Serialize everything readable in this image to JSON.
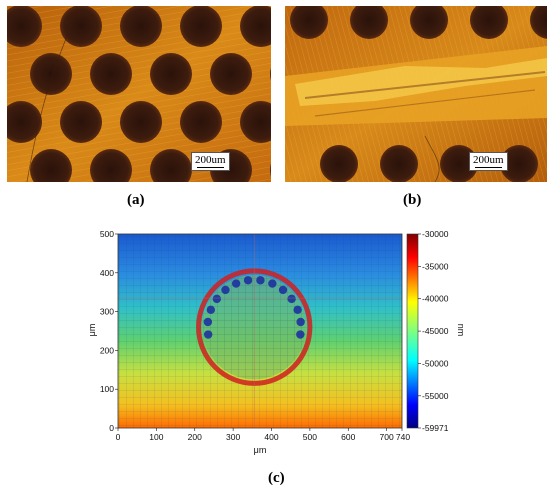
{
  "figure": {
    "panel_a": {
      "caption": "(a)",
      "scalebar": "200um"
    },
    "panel_b": {
      "caption": "(b)",
      "scalebar": "200um"
    },
    "panel_c": {
      "caption": "(c)"
    }
  },
  "colors": {
    "micrograph_base": "#c9700f",
    "micrograph_bright": "#f2b830",
    "dimple": "#3a1a0c"
  },
  "chart_data": {
    "type": "heatmap",
    "xlabel": "μm",
    "ylabel": "μm",
    "colorbar_label": "nm",
    "xlim": [
      0,
      740
    ],
    "ylim": [
      0,
      500
    ],
    "xticks": [
      0,
      100,
      200,
      300,
      400,
      500,
      600,
      700,
      740
    ],
    "yticks": [
      0,
      100,
      200,
      300,
      400,
      500
    ],
    "colorbar_range": [
      -59971,
      -30000
    ],
    "colorbar_ticks": [
      -30000,
      -35000,
      -40000,
      -45000,
      -50000,
      -55000,
      -59971
    ],
    "colormap": "jet",
    "features": [
      {
        "name": "circular-dimple",
        "center": [
          355,
          260
        ],
        "radius": 145
      }
    ]
  }
}
